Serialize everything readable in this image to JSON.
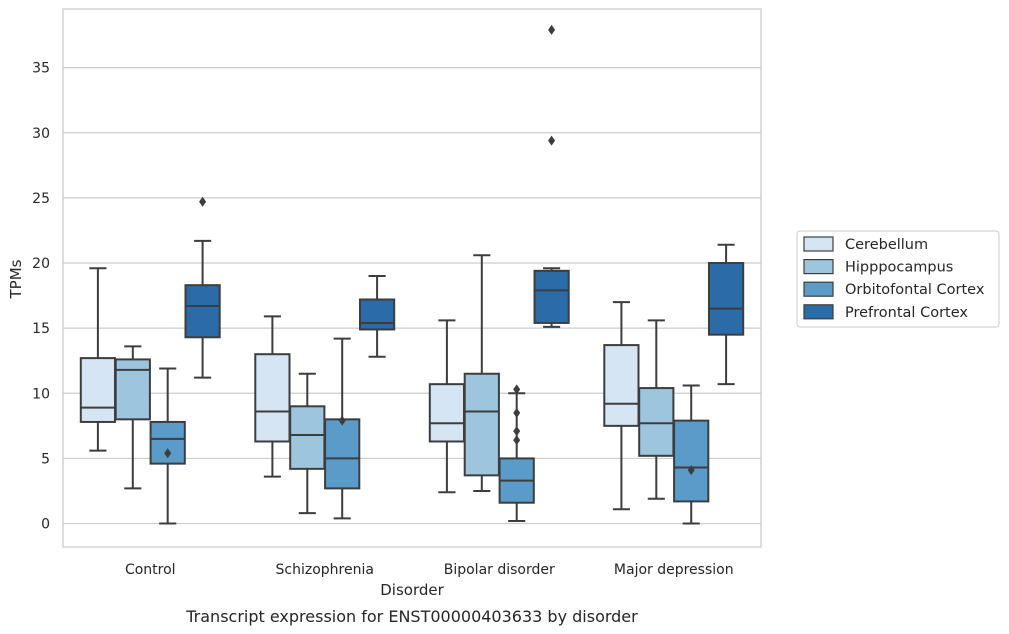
{
  "chart_data": {
    "type": "box",
    "caption": "Transcript expression for ENST00000403633 by disorder",
    "xlabel": "Disorder",
    "ylabel": "TPMs",
    "ylim": [
      -1.8,
      39.5
    ],
    "yticks": [
      0,
      5,
      10,
      15,
      20,
      25,
      30,
      35
    ],
    "grid": true,
    "legend": {
      "placement": "right"
    },
    "categories": [
      "Control",
      "Schizophrenia",
      "Bipolar disorder",
      "Major depression"
    ],
    "series": [
      {
        "name": "Cerebellum",
        "color": "#d6e5f3",
        "boxes": [
          {
            "q1": 7.8,
            "median": 8.9,
            "q3": 12.7,
            "whisker_low": 5.6,
            "whisker_high": 19.6,
            "outliers": []
          },
          {
            "q1": 6.3,
            "median": 8.6,
            "q3": 13.0,
            "whisker_low": 3.6,
            "whisker_high": 15.9,
            "outliers": []
          },
          {
            "q1": 6.3,
            "median": 7.7,
            "q3": 10.7,
            "whisker_low": 2.4,
            "whisker_high": 15.6,
            "outliers": []
          },
          {
            "q1": 7.5,
            "median": 9.2,
            "q3": 13.7,
            "whisker_low": 1.1,
            "whisker_high": 17.0,
            "outliers": []
          }
        ]
      },
      {
        "name": "Hipppocampus",
        "color": "#9ec5de",
        "boxes": [
          {
            "q1": 8.0,
            "median": 11.8,
            "q3": 12.6,
            "whisker_low": 2.7,
            "whisker_high": 13.6,
            "outliers": []
          },
          {
            "q1": 4.2,
            "median": 6.8,
            "q3": 9.0,
            "whisker_low": 0.8,
            "whisker_high": 11.5,
            "outliers": []
          },
          {
            "q1": 3.7,
            "median": 8.6,
            "q3": 11.5,
            "whisker_low": 2.5,
            "whisker_high": 20.6,
            "outliers": []
          },
          {
            "q1": 5.2,
            "median": 7.7,
            "q3": 10.4,
            "whisker_low": 1.9,
            "whisker_high": 15.6,
            "outliers": []
          }
        ]
      },
      {
        "name": "Orbitofontal Cortex",
        "color": "#5a9bc9",
        "boxes": [
          {
            "q1": 4.6,
            "median": 6.5,
            "q3": 7.8,
            "whisker_low": 0.0,
            "whisker_high": 11.9,
            "outliers": [
              5.4
            ]
          },
          {
            "q1": 2.7,
            "median": 5.0,
            "q3": 8.0,
            "whisker_low": 0.4,
            "whisker_high": 14.2,
            "outliers": [
              7.9
            ]
          },
          {
            "q1": 1.6,
            "median": 3.3,
            "q3": 5.0,
            "whisker_low": 0.2,
            "whisker_high": 10.0,
            "outliers": [
              10.3,
              8.5,
              7.1,
              6.4
            ]
          },
          {
            "q1": 1.7,
            "median": 4.3,
            "q3": 7.9,
            "whisker_low": 0.0,
            "whisker_high": 10.6,
            "outliers": [
              4.1
            ]
          }
        ]
      },
      {
        "name": "Prefrontal Cortex",
        "color": "#2b6ba8",
        "boxes": [
          {
            "q1": 14.3,
            "median": 16.7,
            "q3": 18.3,
            "whisker_low": 11.2,
            "whisker_high": 21.7,
            "outliers": [
              24.7
            ]
          },
          {
            "q1": 14.9,
            "median": 15.4,
            "q3": 17.2,
            "whisker_low": 12.8,
            "whisker_high": 19.0,
            "outliers": []
          },
          {
            "q1": 15.4,
            "median": 17.9,
            "q3": 19.4,
            "whisker_low": 15.1,
            "whisker_high": 19.6,
            "outliers": [
              37.9,
              29.4
            ]
          },
          {
            "q1": 14.5,
            "median": 16.5,
            "q3": 20.0,
            "whisker_low": 10.7,
            "whisker_high": 21.4,
            "outliers": []
          }
        ]
      }
    ]
  }
}
